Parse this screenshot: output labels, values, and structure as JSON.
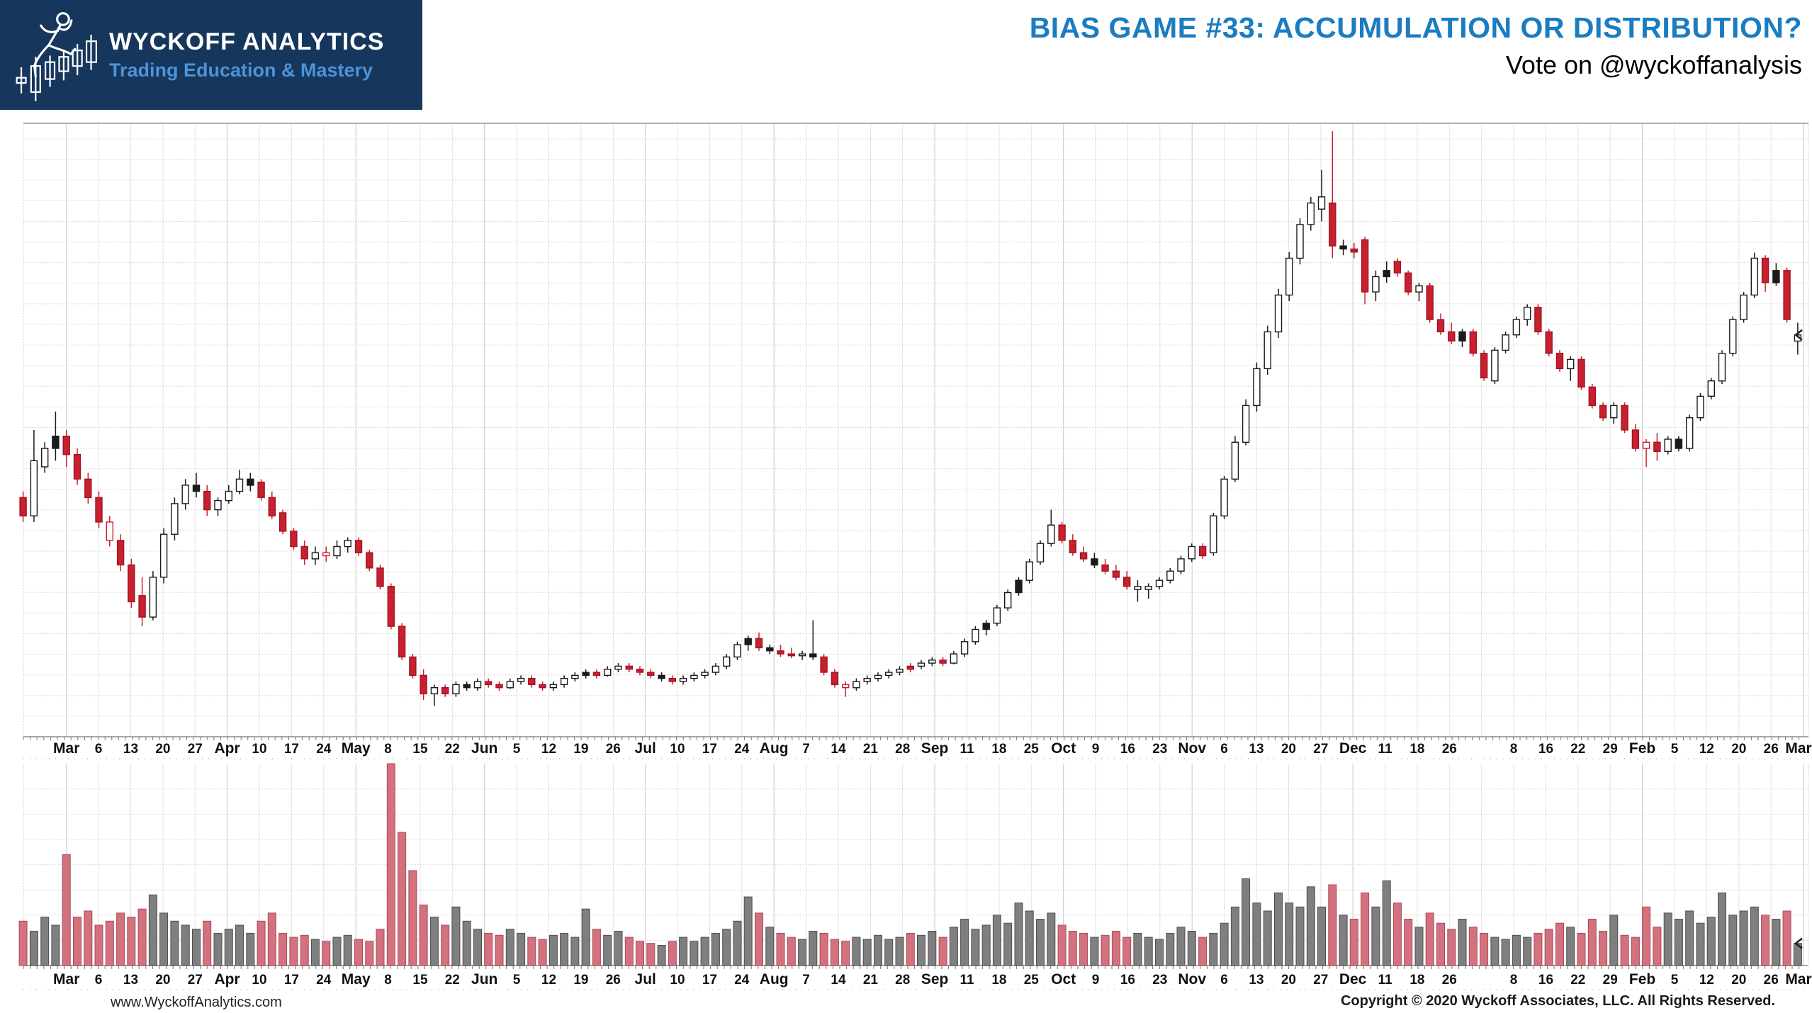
{
  "header": {
    "logo": {
      "title": "WYCKOFF ANALYTICS",
      "subtitle": "Trading Education & Mastery",
      "icon": "runner-climbing-candlesticks-icon",
      "bg_color": "#16365C",
      "subtitle_color": "#4D93D8"
    },
    "title": "BIAS GAME #33: ACCUMULATION OR DISTRIBUTION?",
    "title_color": "#1A7CC1",
    "subtitle": "Vote on @wyckoffanalysis"
  },
  "footer": {
    "website": "www.WyckoffAnalytics.com",
    "copyright": "Copyright © 2020 Wyckoff Associates, LLC. All Rights Reserved."
  },
  "chart_data": {
    "type": "candlestick",
    "title": "",
    "xlabel": "",
    "ylabel": "",
    "description": "Daily OHLC candlestick chart (approx. one year, March to March) with volume subpanel. No numeric price axis is shown in the image, so price and volume values are normalized to a 0-100 scale of panel height.",
    "grid": true,
    "legend_position": "none",
    "price_ylim": [
      0,
      100
    ],
    "volume_ylim": [
      0,
      100
    ],
    "x_tick_labels": [
      "Mar",
      "6",
      "13",
      "20",
      "27",
      "Apr",
      "10",
      "17",
      "24",
      "May",
      "8",
      "15",
      "22",
      "Jun",
      "5",
      "12",
      "19",
      "26",
      "Jul",
      "10",
      "17",
      "24",
      "Aug",
      "7",
      "14",
      "21",
      "28",
      "Sep",
      "11",
      "18",
      "25",
      "Oct",
      "9",
      "16",
      "23",
      "Nov",
      "6",
      "13",
      "20",
      "27",
      "Dec",
      "11",
      "18",
      "26",
      "",
      "8",
      "16",
      "22",
      "29",
      "Feb",
      "5",
      "12",
      "20",
      "26",
      "Mar"
    ],
    "candle_style_legend": {
      "0": "up-hollow-white",
      "1": "down-solid-red",
      "2": "solid-black",
      "3": "hollow-red"
    },
    "candles": [
      [
        39,
        40,
        35,
        36,
        1
      ],
      [
        36,
        50,
        35,
        45,
        0
      ],
      [
        44,
        48,
        43,
        47,
        0
      ],
      [
        47,
        53,
        45,
        49,
        2
      ],
      [
        49,
        50,
        44,
        46,
        1
      ],
      [
        46,
        47,
        41,
        42,
        1
      ],
      [
        42,
        43,
        38,
        39,
        1
      ],
      [
        39,
        40,
        34,
        35,
        1
      ],
      [
        35,
        36,
        31,
        32,
        3
      ],
      [
        32,
        33,
        27,
        28,
        1
      ],
      [
        28,
        29,
        21,
        22,
        1
      ],
      [
        23,
        26,
        18,
        19.5,
        1
      ],
      [
        19.5,
        27,
        19,
        26,
        0
      ],
      [
        26,
        34,
        25,
        33,
        0
      ],
      [
        33,
        39,
        32,
        38,
        0
      ],
      [
        38,
        42,
        37,
        41,
        0
      ],
      [
        41,
        43,
        39,
        40,
        2
      ],
      [
        40,
        41,
        36,
        37,
        1
      ],
      [
        37,
        39,
        36,
        38.5,
        0
      ],
      [
        38.5,
        41,
        38,
        40,
        0
      ],
      [
        40,
        43.5,
        39.5,
        42,
        0
      ],
      [
        42,
        43,
        40,
        41,
        2
      ],
      [
        41.5,
        42,
        38.5,
        39,
        1
      ],
      [
        39,
        40,
        35.5,
        36,
        1
      ],
      [
        36.5,
        37,
        33,
        33.5,
        1
      ],
      [
        33.5,
        34,
        30.5,
        31,
        1
      ],
      [
        31,
        32,
        28,
        29,
        1
      ],
      [
        29,
        31,
        28,
        30,
        0
      ],
      [
        30,
        31,
        28.5,
        29.5,
        3
      ],
      [
        29.5,
        32,
        29,
        31,
        0
      ],
      [
        31,
        32.5,
        30,
        32,
        0
      ],
      [
        32,
        32.5,
        29.5,
        30,
        1
      ],
      [
        30,
        30.5,
        27,
        27.5,
        1
      ],
      [
        27.5,
        28,
        24,
        24.5,
        1
      ],
      [
        24.5,
        25,
        17.5,
        18,
        1
      ],
      [
        18,
        18.5,
        12.5,
        13,
        1
      ],
      [
        13,
        13.5,
        9.5,
        10,
        1
      ],
      [
        10,
        11,
        6,
        7,
        1
      ],
      [
        7,
        8.5,
        5,
        8,
        0
      ],
      [
        8,
        8.5,
        6.5,
        7,
        1
      ],
      [
        7,
        9,
        6.5,
        8.5,
        0
      ],
      [
        8.5,
        9,
        7.5,
        8,
        2
      ],
      [
        8,
        9.5,
        7.5,
        9,
        0
      ],
      [
        9,
        9.5,
        8,
        8.5,
        1
      ],
      [
        8.5,
        9,
        7.5,
        8,
        1
      ],
      [
        8,
        9.5,
        7.8,
        9,
        0
      ],
      [
        9,
        10,
        8.5,
        9.5,
        0
      ],
      [
        9.5,
        10,
        8,
        8.5,
        1
      ],
      [
        8.5,
        9,
        7.5,
        8,
        1
      ],
      [
        8,
        9,
        7.5,
        8.5,
        0
      ],
      [
        8.5,
        10,
        8,
        9.5,
        0
      ],
      [
        9.5,
        10.5,
        9,
        10,
        0
      ],
      [
        10,
        11,
        9.5,
        10.5,
        2
      ],
      [
        10.5,
        11,
        9.5,
        10,
        1
      ],
      [
        10,
        11.5,
        9.8,
        11,
        0
      ],
      [
        11,
        12,
        10.5,
        11.5,
        0
      ],
      [
        11.5,
        12,
        10.5,
        11,
        1
      ],
      [
        11,
        11.5,
        10,
        10.5,
        1
      ],
      [
        10.5,
        11,
        9.5,
        10,
        1
      ],
      [
        10,
        10.5,
        9,
        9.5,
        2
      ],
      [
        9.5,
        10,
        8.5,
        9,
        1
      ],
      [
        9,
        10,
        8.5,
        9.5,
        0
      ],
      [
        9.5,
        10.5,
        9,
        10,
        0
      ],
      [
        10,
        11,
        9.5,
        10.5,
        0
      ],
      [
        10.5,
        12,
        10,
        11.5,
        0
      ],
      [
        11.5,
        13.5,
        11,
        13,
        0
      ],
      [
        13,
        15.5,
        12.5,
        15,
        0
      ],
      [
        15,
        16.5,
        14,
        16,
        2
      ],
      [
        16,
        17,
        14,
        14.5,
        1
      ],
      [
        14.5,
        15,
        13.5,
        14,
        2
      ],
      [
        14,
        15,
        13,
        13.5,
        1
      ],
      [
        13.5,
        14.5,
        12.8,
        13.2,
        1
      ],
      [
        13.2,
        14,
        12.5,
        13.5,
        0
      ],
      [
        13.5,
        19,
        12.5,
        13,
        2
      ],
      [
        13,
        13.5,
        10,
        10.5,
        1
      ],
      [
        10.5,
        11,
        8,
        8.5,
        1
      ],
      [
        8.5,
        9,
        6.5,
        8,
        3
      ],
      [
        8,
        9.5,
        7.5,
        9,
        0
      ],
      [
        9,
        10,
        8.5,
        9.5,
        0
      ],
      [
        9.5,
        10.5,
        9,
        10,
        0
      ],
      [
        10,
        11,
        9.5,
        10.5,
        0
      ],
      [
        10.5,
        11.5,
        10,
        11,
        0
      ],
      [
        11,
        12,
        10.5,
        11.5,
        1
      ],
      [
        11.5,
        12.5,
        11,
        12,
        0
      ],
      [
        12,
        13,
        11.5,
        12.5,
        0
      ],
      [
        12.5,
        13,
        11.5,
        12,
        1
      ],
      [
        12,
        14,
        11.8,
        13.5,
        0
      ],
      [
        13.5,
        16,
        13,
        15.5,
        0
      ],
      [
        15.5,
        18,
        15,
        17.5,
        0
      ],
      [
        17.5,
        19,
        16.5,
        18.5,
        2
      ],
      [
        18.5,
        21.5,
        18,
        21,
        0
      ],
      [
        21,
        24,
        20.5,
        23.5,
        0
      ],
      [
        23.5,
        26,
        23,
        25.5,
        2
      ],
      [
        25.5,
        29,
        25,
        28.5,
        0
      ],
      [
        28.5,
        32,
        28,
        31.5,
        0
      ],
      [
        31.5,
        37,
        31,
        34.5,
        0
      ],
      [
        34.5,
        35,
        31.5,
        32,
        1
      ],
      [
        32,
        33,
        29.5,
        30,
        1
      ],
      [
        30,
        31,
        28.5,
        29,
        1
      ],
      [
        29,
        30,
        27.5,
        28,
        2
      ],
      [
        28,
        29,
        26.5,
        27,
        1
      ],
      [
        27,
        28,
        25.5,
        26,
        1
      ],
      [
        26,
        27,
        24,
        24.5,
        1
      ],
      [
        24.5,
        25.5,
        22,
        24,
        0
      ],
      [
        24,
        25,
        22.5,
        24.5,
        0
      ],
      [
        24.5,
        26,
        24,
        25.5,
        0
      ],
      [
        25.5,
        27.5,
        25,
        27,
        0
      ],
      [
        27,
        29.5,
        26.5,
        29,
        0
      ],
      [
        29,
        31.5,
        28.5,
        31,
        0
      ],
      [
        31,
        31.5,
        29,
        29.5,
        1
      ],
      [
        30,
        36.5,
        29.5,
        36,
        0
      ],
      [
        36,
        42.5,
        35.5,
        42,
        0
      ],
      [
        42,
        49,
        41.5,
        48,
        0
      ],
      [
        48,
        55,
        47.5,
        54,
        0
      ],
      [
        54,
        61,
        53,
        60,
        0
      ],
      [
        60,
        67,
        59,
        66,
        0
      ],
      [
        66,
        73,
        65,
        72,
        0
      ],
      [
        72,
        79,
        71,
        78,
        0
      ],
      [
        78,
        84.5,
        77,
        83.5,
        0
      ],
      [
        83.5,
        88,
        82.5,
        87,
        0
      ],
      [
        86,
        92.4,
        84,
        88,
        0
      ],
      [
        87,
        98.7,
        78,
        80,
        1
      ],
      [
        80,
        81,
        78.5,
        79.5,
        2
      ],
      [
        79.5,
        80.5,
        78,
        79,
        1
      ],
      [
        81,
        81.5,
        70.5,
        72.5,
        1
      ],
      [
        72.5,
        76,
        71,
        75,
        0
      ],
      [
        75,
        77.5,
        74,
        76,
        2
      ],
      [
        77.5,
        78,
        75,
        75.6,
        1
      ],
      [
        75.6,
        76,
        72,
        72.5,
        1
      ],
      [
        72.5,
        74,
        71,
        73.5,
        0
      ],
      [
        73.5,
        74,
        67.5,
        68,
        1
      ],
      [
        68,
        69,
        65.5,
        66,
        1
      ],
      [
        66,
        67.5,
        64,
        64.5,
        1
      ],
      [
        64.5,
        66.5,
        63.5,
        66,
        2
      ],
      [
        66,
        66.5,
        62,
        62.5,
        1
      ],
      [
        62.5,
        63,
        58,
        58.5,
        1
      ],
      [
        58,
        63.5,
        57.5,
        63,
        0
      ],
      [
        63,
        66,
        62.5,
        65.5,
        0
      ],
      [
        65.5,
        68.5,
        65,
        68,
        0
      ],
      [
        68,
        70.5,
        67,
        70,
        0
      ],
      [
        70,
        70.5,
        65.5,
        66,
        1
      ],
      [
        66,
        66.5,
        62,
        62.5,
        1
      ],
      [
        62.5,
        63,
        59.5,
        60,
        1
      ],
      [
        60,
        62,
        58,
        61.5,
        0
      ],
      [
        61.5,
        62,
        56.5,
        57,
        1
      ],
      [
        57,
        57.5,
        53.5,
        54,
        1
      ],
      [
        54,
        54.5,
        51.5,
        52,
        1
      ],
      [
        52,
        54.5,
        51,
        54,
        0
      ],
      [
        54,
        54.5,
        49.5,
        50,
        1
      ],
      [
        50,
        51,
        46.5,
        47,
        1
      ],
      [
        47,
        48.5,
        44,
        48,
        3
      ],
      [
        48,
        49.5,
        45,
        46.5,
        1
      ],
      [
        46.5,
        49,
        46,
        48.5,
        0
      ],
      [
        48.5,
        49,
        46.5,
        47,
        2
      ],
      [
        47,
        52.5,
        46.5,
        52,
        0
      ],
      [
        52,
        56,
        51.5,
        55.5,
        0
      ],
      [
        55.5,
        58.5,
        55,
        58,
        0
      ],
      [
        58,
        63,
        57.5,
        62.5,
        0
      ],
      [
        62.5,
        68.5,
        62,
        68,
        0
      ],
      [
        68,
        72.5,
        67.5,
        72,
        0
      ],
      [
        72,
        78.9,
        71.5,
        78,
        0
      ],
      [
        78,
        78.5,
        72.5,
        74,
        1
      ],
      [
        74,
        77.2,
        73.5,
        76,
        2
      ],
      [
        76,
        76.5,
        67.5,
        68,
        1
      ],
      [
        64.5,
        67.5,
        62.3,
        65.5,
        0
      ]
    ],
    "volumes": [
      22,
      17,
      24,
      20,
      55,
      24,
      27,
      20,
      22,
      26,
      24,
      28,
      35,
      26,
      22,
      20,
      18,
      22,
      16,
      18,
      20,
      16,
      22,
      26,
      16,
      14,
      15,
      13,
      12,
      14,
      15,
      13,
      12,
      18,
      100,
      66,
      47,
      30,
      24,
      20,
      29,
      22,
      18,
      16,
      15,
      18,
      16,
      14,
      13,
      15,
      16,
      14,
      28,
      18,
      15,
      17,
      14,
      12,
      11,
      10,
      12,
      14,
      12,
      14,
      16,
      18,
      22,
      34,
      26,
      19,
      16,
      14,
      13,
      17,
      16,
      13,
      12,
      14,
      13,
      15,
      13,
      14,
      16,
      15,
      17,
      14,
      19,
      23,
      18,
      20,
      25,
      21,
      31,
      27,
      23,
      26,
      20,
      17,
      16,
      14,
      15,
      17,
      14,
      16,
      14,
      13,
      16,
      19,
      17,
      14,
      16,
      21,
      29,
      43,
      31,
      27,
      36,
      31,
      29,
      39,
      29,
      40,
      25,
      23,
      36,
      29,
      42,
      31,
      23,
      19,
      26,
      21,
      18,
      23,
      19,
      16,
      14,
      13,
      15,
      14,
      16,
      18,
      21,
      19,
      16,
      23,
      17,
      25,
      15,
      14,
      29,
      19,
      26,
      23,
      27,
      21,
      24,
      36,
      25,
      27,
      29,
      25,
      23,
      27,
      11
    ],
    "last_close": 65.5,
    "last_volume": 11,
    "colors": {
      "candle_up_fill": "#FFFFFF",
      "candle_down_fill": "#C8202F",
      "candle_outline": "#1A1A1A",
      "candle_red_outline": "#A01423",
      "volume_down_fill": "#D4717F",
      "volume_down_outline": "#A84A58",
      "volume_up_fill": "#7F7F7F",
      "volume_up_outline": "#4F4F4F",
      "grid": "#D9D9D9",
      "grid_month": "#C9C9C9",
      "axis_line": "#8A8A8A",
      "axis_text": "#111111"
    }
  }
}
